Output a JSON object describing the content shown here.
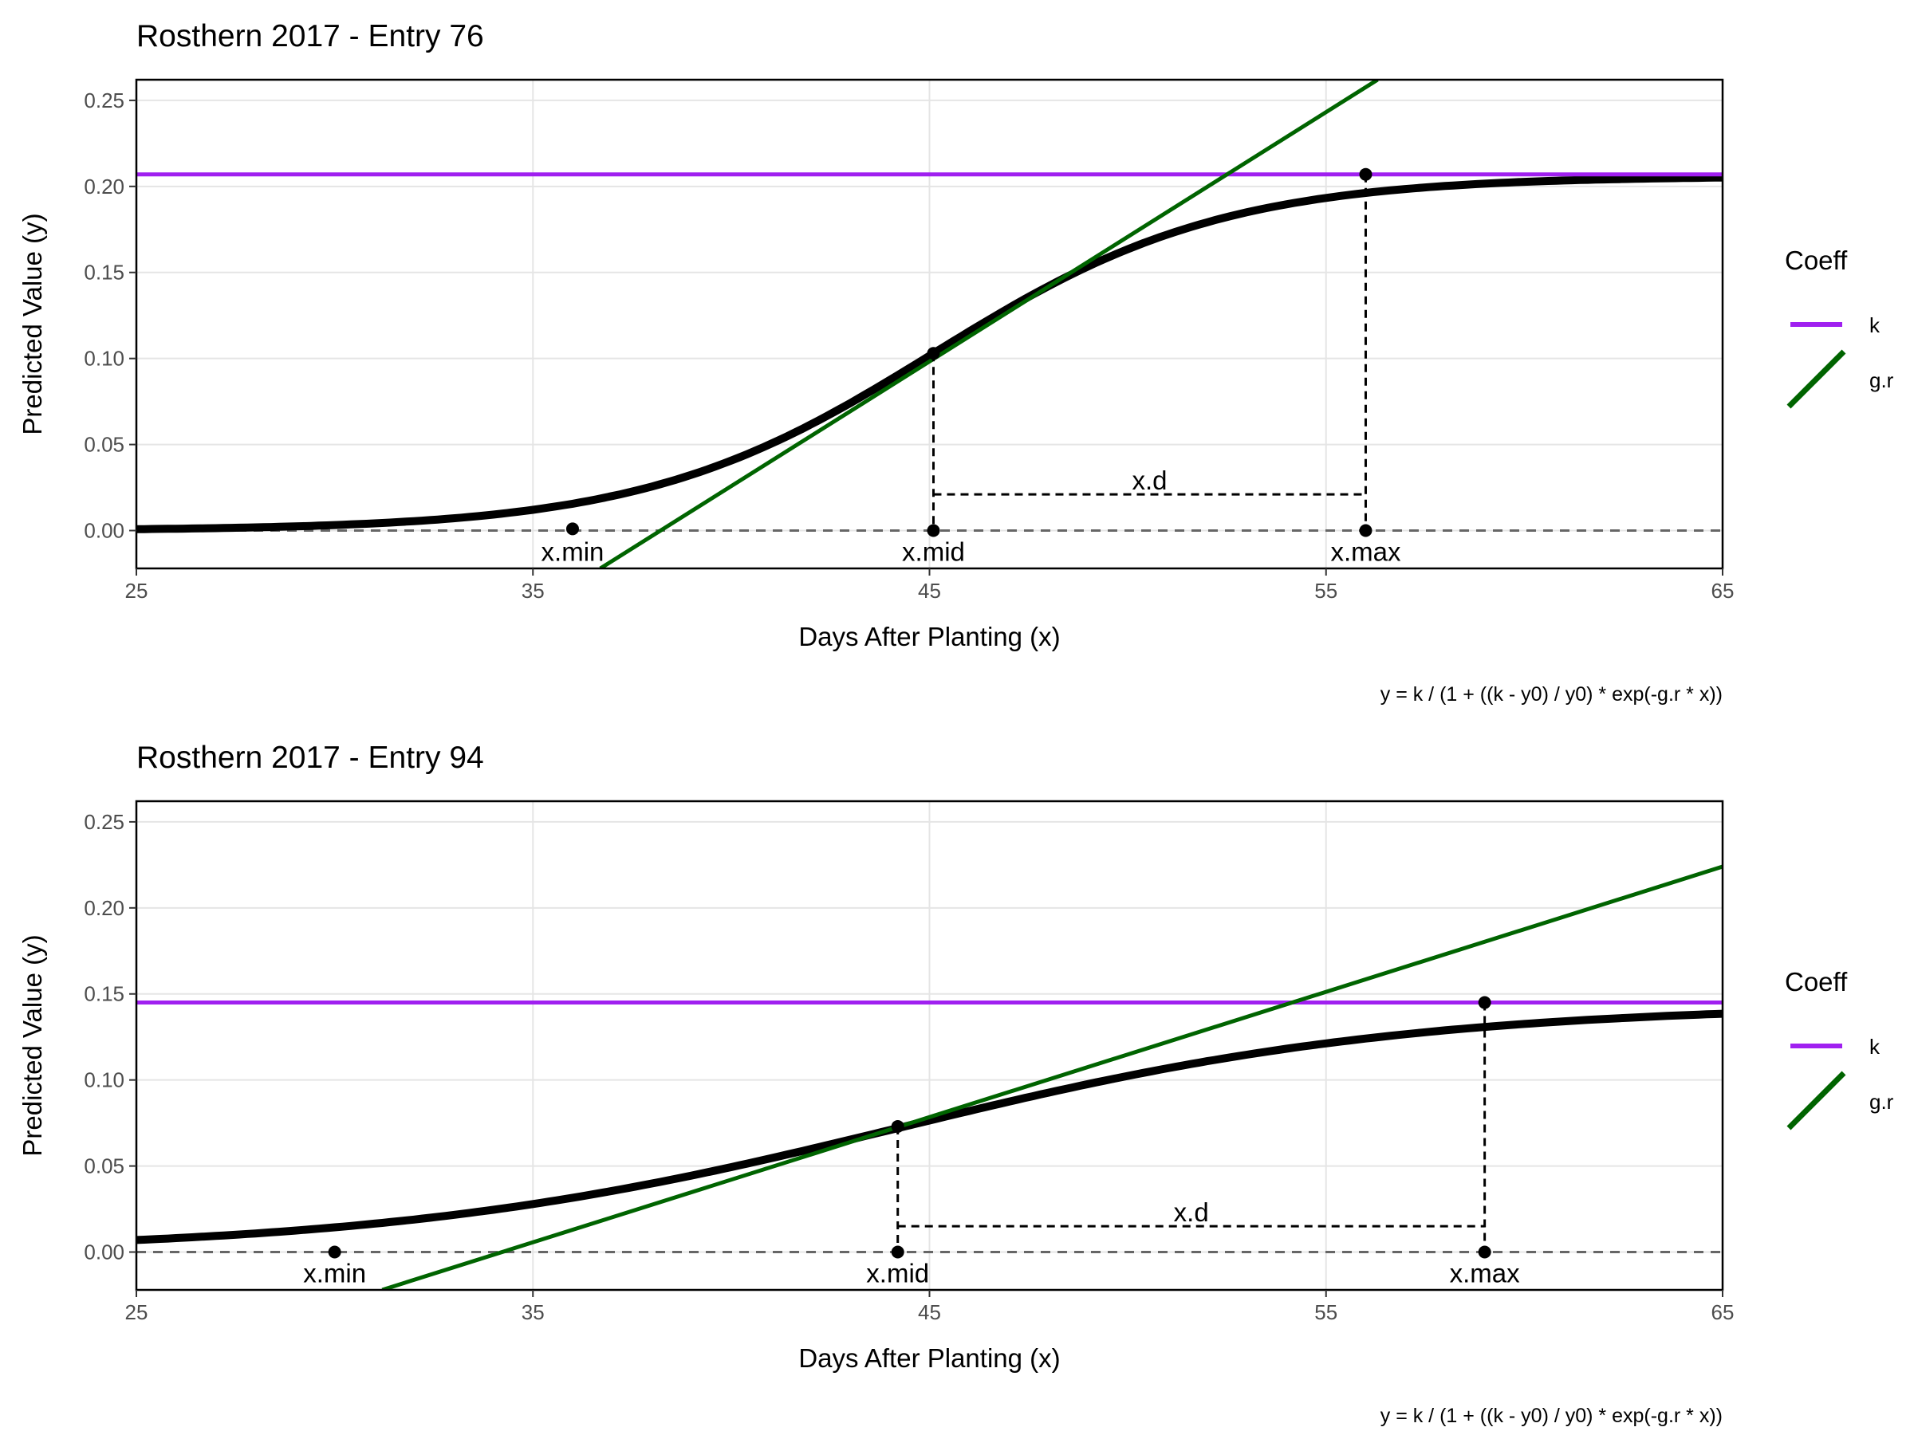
{
  "chart_data": [
    {
      "type": "line",
      "title": "Rosthern 2017 - Entry 76",
      "xlabel": "Days After Planting (x)",
      "ylabel": "Predicted Value (y)",
      "caption": "y = k / (1 + ((k - y0) / y0) * exp(-g.r * x))",
      "xlim": [
        25,
        65
      ],
      "ylim": [
        -0.022,
        0.262
      ],
      "x_ticks": [
        "25",
        "35",
        "45",
        "55",
        "65"
      ],
      "y_ticks": [
        "0.00",
        "0.05",
        "0.10",
        "0.15",
        "0.20",
        "0.25"
      ],
      "grid": true,
      "legend": {
        "title": "Coeff",
        "position": "right",
        "entries": [
          {
            "label": "k",
            "color": "#a020f0"
          },
          {
            "label": "g.r",
            "color": "#006400"
          }
        ]
      },
      "curve": {
        "color": "#000000",
        "k": 0.206,
        "x_mid": 45.1,
        "rate": 0.275
      },
      "k_line": {
        "y": 0.207,
        "color": "#a020f0"
      },
      "gr_line": {
        "points": [
          [
            36.7,
            -0.022
          ],
          [
            56.3,
            0.262
          ]
        ],
        "color": "#006400"
      },
      "markers": {
        "x_min": {
          "label": "x.min",
          "x": 36.0,
          "y": 0.001
        },
        "x_mid": {
          "label": "x.mid",
          "x": 45.1,
          "y": 0.103
        },
        "x_max": {
          "label": "x.max",
          "x": 56.0,
          "y": 0.207
        },
        "x_d": {
          "label": "x.d",
          "y": 0.021
        }
      },
      "colors": {
        "grid": "#e5e5e5",
        "baseline": "#666666"
      }
    },
    {
      "type": "line",
      "title": "Rosthern 2017 - Entry 94",
      "xlabel": "Days After Planting (x)",
      "ylabel": "Predicted Value (y)",
      "caption": "y = k / (1 + ((k - y0) / y0) * exp(-g.r * x))",
      "xlim": [
        25,
        65
      ],
      "ylim": [
        -0.022,
        0.262
      ],
      "x_ticks": [
        "25",
        "35",
        "45",
        "55",
        "65"
      ],
      "y_ticks": [
        "0.00",
        "0.05",
        "0.10",
        "0.15",
        "0.20",
        "0.25"
      ],
      "grid": true,
      "legend": {
        "title": "Coeff",
        "position": "right",
        "entries": [
          {
            "label": "k",
            "color": "#a020f0"
          },
          {
            "label": "g.r",
            "color": "#006400"
          }
        ]
      },
      "curve": {
        "color": "#000000",
        "k": 0.144,
        "x_mid": 44.2,
        "rate": 0.155
      },
      "k_line": {
        "y": 0.145,
        "color": "#a020f0"
      },
      "gr_line": {
        "points": [
          [
            31.2,
            -0.022
          ],
          [
            65.0,
            0.224
          ]
        ],
        "color": "#006400"
      },
      "markers": {
        "x_min": {
          "label": "x.min",
          "x": 30.0,
          "y": 0.0
        },
        "x_mid": {
          "label": "x.mid",
          "x": 44.2,
          "y": 0.073
        },
        "x_max": {
          "label": "x.max",
          "x": 59.0,
          "y": 0.145
        },
        "x_d": {
          "label": "x.d",
          "y": 0.015
        }
      },
      "colors": {
        "grid": "#e5e5e5",
        "baseline": "#666666"
      }
    }
  ]
}
